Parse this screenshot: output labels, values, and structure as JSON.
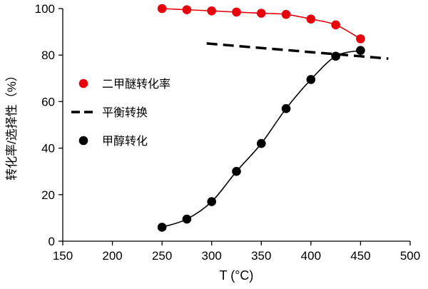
{
  "chart_data": {
    "type": "line",
    "title": "",
    "xlabel": "T (°C)",
    "ylabel": "转化率/选择性（%）",
    "xlim": [
      150,
      500
    ],
    "ylim": [
      0,
      100
    ],
    "xticks": [
      150,
      200,
      250,
      300,
      350,
      400,
      450,
      500
    ],
    "yticks": [
      0,
      20,
      40,
      60,
      80,
      100
    ],
    "grid": false,
    "legend_position": "inside-left",
    "colors": {
      "red_series": "#e8000d",
      "black_series": "#000000",
      "axis": "#000000"
    },
    "series": [
      {
        "name": "二甲醚转化率",
        "style": "solid-markers",
        "color": "#e8000d",
        "x": [
          250,
          275,
          300,
          325,
          350,
          375,
          400,
          425,
          450
        ],
        "y": [
          100,
          99.5,
          99,
          98.5,
          98,
          97.5,
          95.5,
          93,
          87
        ]
      },
      {
        "name": "平衡转换",
        "style": "dashed",
        "color": "#000000",
        "x": [
          295,
          478
        ],
        "y": [
          85,
          78.5
        ]
      },
      {
        "name": "甲醇转化",
        "style": "solid-markers",
        "color": "#000000",
        "x": [
          250,
          275,
          300,
          325,
          350,
          375,
          400,
          425,
          450
        ],
        "y": [
          6,
          9.5,
          17,
          30,
          42,
          57,
          69.5,
          79.5,
          82
        ]
      }
    ]
  }
}
